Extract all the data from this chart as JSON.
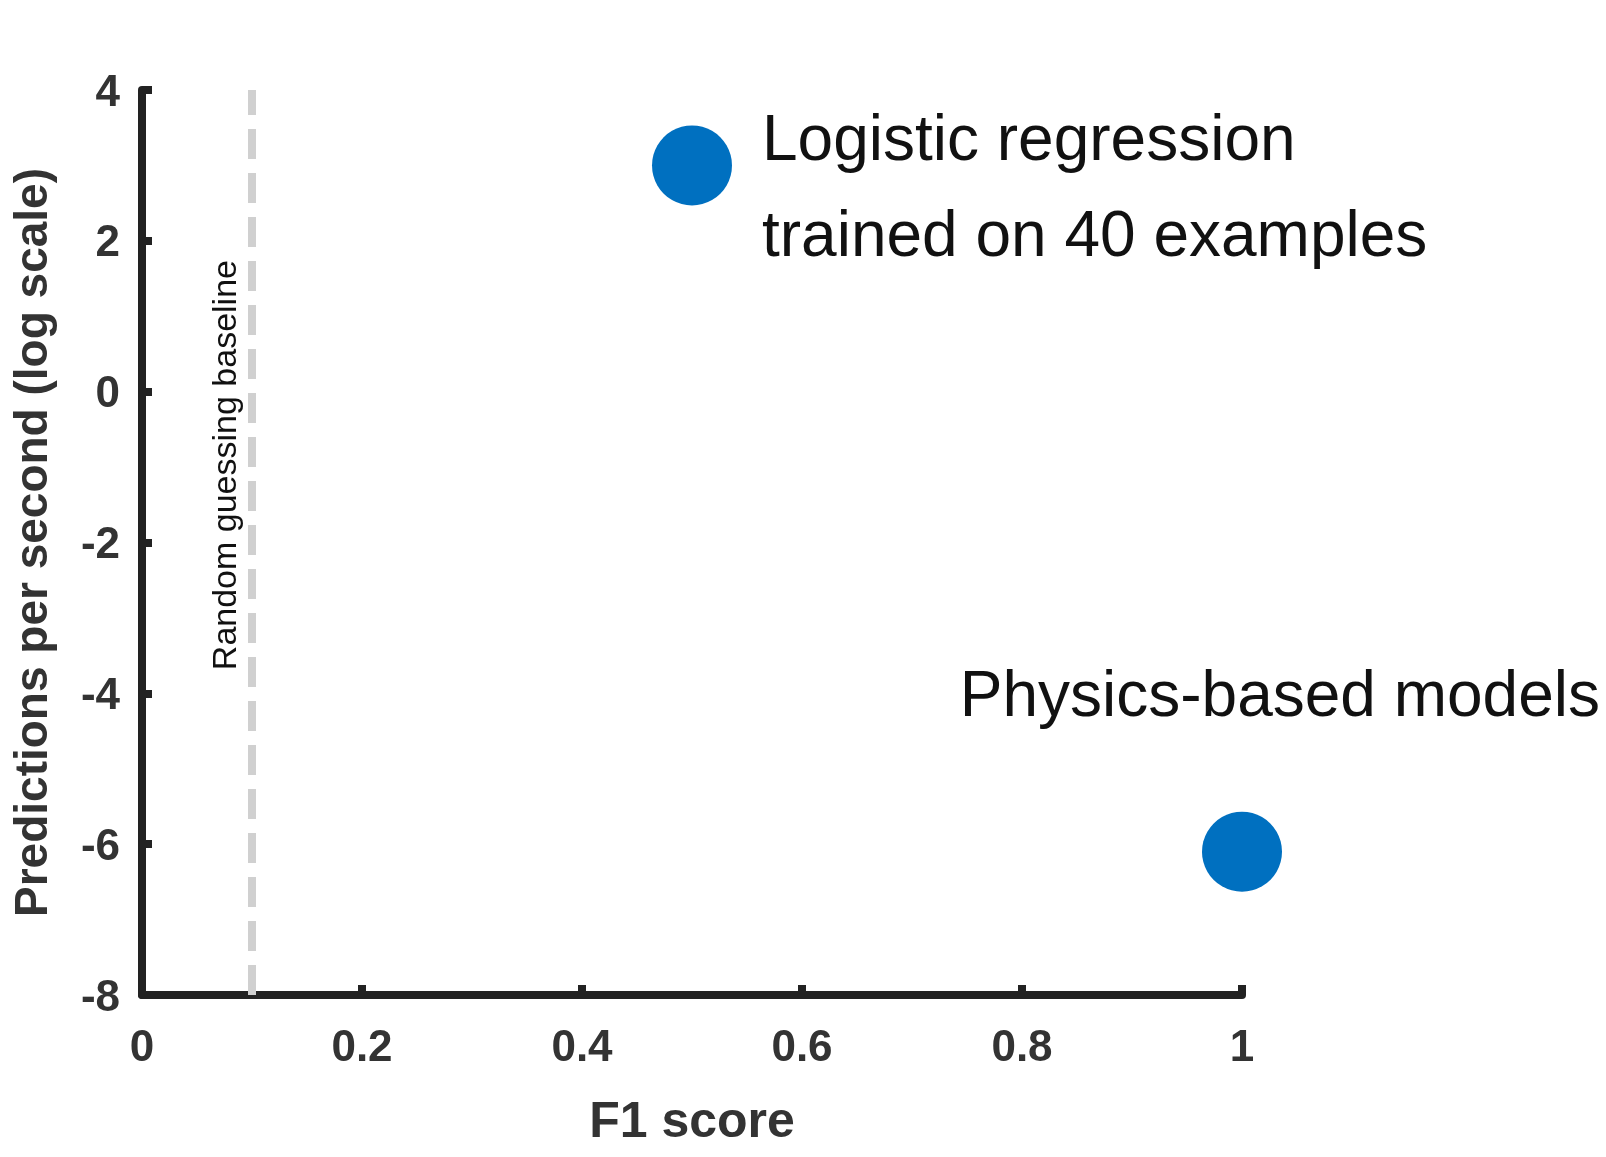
{
  "chart_data": {
    "type": "scatter",
    "xlabel": "F1 score",
    "ylabel": "Predictions per second (log scale)",
    "x": [
      0.5,
      1
    ],
    "values": [
      3,
      -6.1
    ],
    "color": "#0070c0",
    "marker": "circle",
    "xlim": [
      0,
      1
    ],
    "xticks": [
      0,
      0.2,
      0.4,
      0.6,
      0.8,
      1
    ],
    "ylim": [
      -8,
      4
    ],
    "yticks": [
      -8,
      -6,
      -4,
      -2,
      0,
      2,
      4
    ],
    "grid": false,
    "ref_lines": [
      {
        "axis": "x",
        "value": 0.1,
        "label": "Random guessing baseline",
        "color": "#d0d0d0",
        "line_style": "dashed"
      }
    ],
    "annotations": [
      {
        "text": "Logistic regression\ntrained on 40 examples",
        "x": 0.5,
        "y": 3
      },
      {
        "text": "Physics-based models",
        "x": 1,
        "y": -6.1
      }
    ]
  }
}
